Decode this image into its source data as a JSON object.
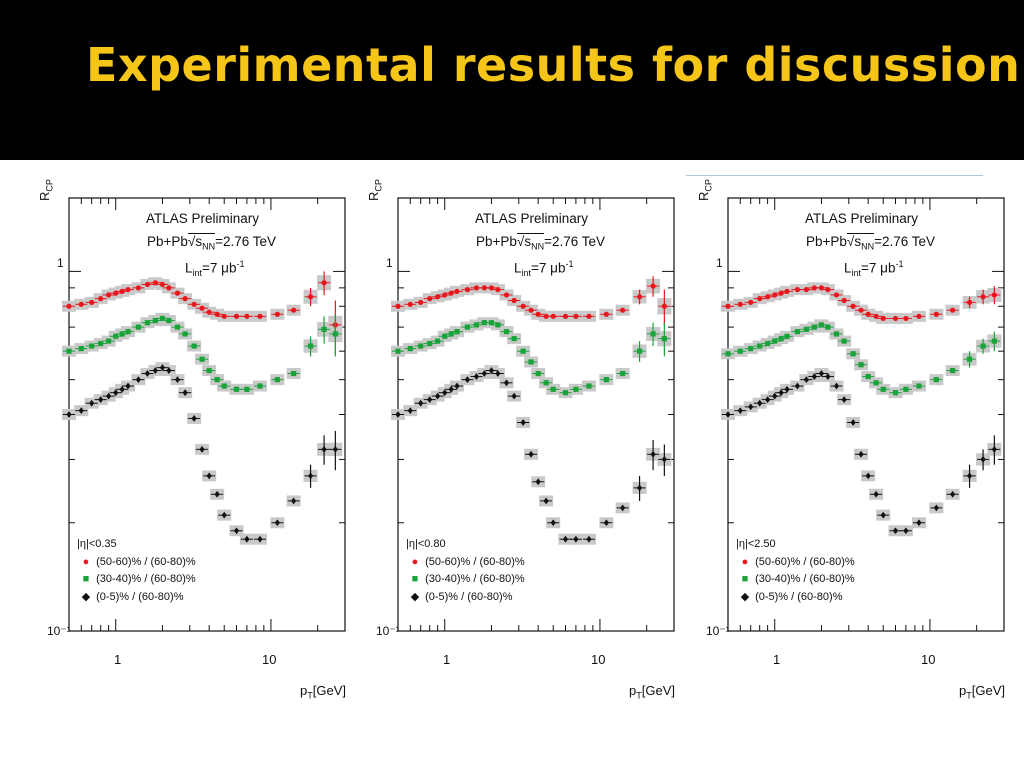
{
  "slide": {
    "title": "Experimental results for discussion"
  },
  "chart_data": [
    {
      "type": "scatter",
      "xscale": "log",
      "yscale": "log",
      "xlim": [
        0.5,
        30
      ],
      "ylim": [
        0.1,
        1.6
      ],
      "y_ticks": [
        "1",
        "10⁻¹"
      ],
      "x_ticks": [
        "1",
        "10"
      ],
      "ylabel": "R_CP",
      "xlabel": "p_T[GeV]",
      "annotations": [
        "ATLAS Preliminary",
        "Pb+Pb √s_NN=2.76 TeV",
        "L_int=7 μb⁻¹",
        "|η|<0.35"
      ],
      "series": [
        {
          "name": "(50-60)% / (60-80)%",
          "color": "#e8161d",
          "marker": "circle",
          "x": [
            0.5,
            0.6,
            0.7,
            0.8,
            0.9,
            1.0,
            1.1,
            1.2,
            1.4,
            1.6,
            1.8,
            2.0,
            2.2,
            2.5,
            2.8,
            3.2,
            3.6,
            4.0,
            4.5,
            5.0,
            6.0,
            7.0,
            8.5,
            11.0,
            14.0,
            18.0,
            22.0,
            26.0
          ],
          "y": [
            0.8,
            0.81,
            0.82,
            0.84,
            0.86,
            0.87,
            0.88,
            0.89,
            0.9,
            0.92,
            0.93,
            0.92,
            0.9,
            0.87,
            0.84,
            0.81,
            0.79,
            0.77,
            0.76,
            0.75,
            0.75,
            0.75,
            0.75,
            0.76,
            0.78,
            0.85,
            0.93,
            0.71
          ],
          "yerr_high": [
            0,
            0,
            0,
            0,
            0,
            0,
            0,
            0,
            0,
            0,
            0,
            0,
            0,
            0,
            0,
            0,
            0,
            0,
            0,
            0,
            0,
            0,
            0,
            0,
            0,
            0.05,
            0.07,
            0.12
          ]
        },
        {
          "name": "(30-40)% / (60-80)%",
          "color": "#1aa33a",
          "marker": "square",
          "x": [
            0.5,
            0.6,
            0.7,
            0.8,
            0.9,
            1.0,
            1.1,
            1.2,
            1.4,
            1.6,
            1.8,
            2.0,
            2.2,
            2.5,
            2.8,
            3.2,
            3.6,
            4.0,
            4.5,
            5.0,
            6.0,
            7.0,
            8.5,
            11.0,
            14.0,
            18.0,
            22.0,
            26.0
          ],
          "y": [
            0.6,
            0.61,
            0.62,
            0.63,
            0.64,
            0.66,
            0.67,
            0.68,
            0.7,
            0.72,
            0.73,
            0.74,
            0.73,
            0.7,
            0.67,
            0.62,
            0.57,
            0.53,
            0.5,
            0.48,
            0.47,
            0.47,
            0.48,
            0.5,
            0.52,
            0.62,
            0.69,
            0.67
          ],
          "yerr_high": [
            0,
            0,
            0,
            0,
            0,
            0,
            0,
            0,
            0,
            0,
            0,
            0,
            0,
            0,
            0,
            0,
            0,
            0,
            0,
            0,
            0,
            0,
            0,
            0,
            0,
            0.04,
            0.06,
            0.09
          ]
        },
        {
          "name": "(0-5)% / (60-80)%",
          "color": "#111111",
          "marker": "diamond",
          "x": [
            0.5,
            0.6,
            0.7,
            0.8,
            0.9,
            1.0,
            1.1,
            1.2,
            1.4,
            1.6,
            1.8,
            2.0,
            2.2,
            2.5,
            2.8,
            3.2,
            3.6,
            4.0,
            4.5,
            5.0,
            6.0,
            7.0,
            8.5,
            11.0,
            14.0,
            18.0,
            22.0,
            26.0
          ],
          "y": [
            0.4,
            0.41,
            0.43,
            0.44,
            0.45,
            0.46,
            0.47,
            0.48,
            0.5,
            0.52,
            0.53,
            0.54,
            0.53,
            0.5,
            0.46,
            0.39,
            0.32,
            0.27,
            0.24,
            0.21,
            0.19,
            0.18,
            0.18,
            0.2,
            0.23,
            0.27,
            0.32,
            0.32
          ],
          "yerr_high": [
            0,
            0,
            0,
            0,
            0,
            0,
            0,
            0,
            0,
            0,
            0,
            0,
            0,
            0,
            0,
            0,
            0,
            0,
            0,
            0,
            0,
            0,
            0,
            0,
            0,
            0.02,
            0.03,
            0.04
          ]
        }
      ]
    },
    {
      "type": "scatter",
      "xscale": "log",
      "yscale": "log",
      "xlim": [
        0.5,
        30
      ],
      "ylim": [
        0.1,
        1.6
      ],
      "y_ticks": [
        "1",
        "10⁻¹"
      ],
      "x_ticks": [
        "1",
        "10"
      ],
      "ylabel": "R_CP",
      "xlabel": "p_T[GeV]",
      "annotations": [
        "ATLAS Preliminary",
        "Pb+Pb √s_NN=2.76 TeV",
        "L_int=7 μb⁻¹",
        "|η|<0.80"
      ],
      "series": [
        {
          "name": "(50-60)% / (60-80)%",
          "color": "#e8161d",
          "marker": "circle",
          "x": [
            0.5,
            0.6,
            0.7,
            0.8,
            0.9,
            1.0,
            1.1,
            1.2,
            1.4,
            1.6,
            1.8,
            2.0,
            2.2,
            2.5,
            2.8,
            3.2,
            3.6,
            4.0,
            4.5,
            5.0,
            6.0,
            7.0,
            8.5,
            11.0,
            14.0,
            18.0,
            22.0,
            26.0
          ],
          "y": [
            0.8,
            0.81,
            0.82,
            0.84,
            0.85,
            0.86,
            0.87,
            0.88,
            0.89,
            0.9,
            0.9,
            0.9,
            0.89,
            0.86,
            0.83,
            0.8,
            0.78,
            0.76,
            0.75,
            0.75,
            0.75,
            0.75,
            0.75,
            0.76,
            0.78,
            0.85,
            0.91,
            0.8
          ],
          "yerr_high": [
            0,
            0,
            0,
            0,
            0,
            0,
            0,
            0,
            0,
            0,
            0,
            0,
            0,
            0,
            0,
            0,
            0,
            0,
            0,
            0,
            0,
            0,
            0,
            0,
            0,
            0.04,
            0.06,
            0.09
          ]
        },
        {
          "name": "(30-40)% / (60-80)%",
          "color": "#1aa33a",
          "marker": "square",
          "x": [
            0.5,
            0.6,
            0.7,
            0.8,
            0.9,
            1.0,
            1.1,
            1.2,
            1.4,
            1.6,
            1.8,
            2.0,
            2.2,
            2.5,
            2.8,
            3.2,
            3.6,
            4.0,
            4.5,
            5.0,
            6.0,
            7.0,
            8.5,
            11.0,
            14.0,
            18.0,
            22.0,
            26.0
          ],
          "y": [
            0.6,
            0.61,
            0.62,
            0.63,
            0.64,
            0.66,
            0.67,
            0.68,
            0.7,
            0.71,
            0.72,
            0.72,
            0.71,
            0.68,
            0.65,
            0.6,
            0.56,
            0.52,
            0.49,
            0.47,
            0.46,
            0.47,
            0.48,
            0.5,
            0.52,
            0.6,
            0.67,
            0.65
          ],
          "yerr_high": [
            0,
            0,
            0,
            0,
            0,
            0,
            0,
            0,
            0,
            0,
            0,
            0,
            0,
            0,
            0,
            0,
            0,
            0,
            0,
            0,
            0,
            0,
            0,
            0,
            0,
            0.04,
            0.05,
            0.07
          ]
        },
        {
          "name": "(0-5)% / (60-80)%",
          "color": "#111111",
          "marker": "diamond",
          "x": [
            0.5,
            0.6,
            0.7,
            0.8,
            0.9,
            1.0,
            1.1,
            1.2,
            1.4,
            1.6,
            1.8,
            2.0,
            2.2,
            2.5,
            2.8,
            3.2,
            3.6,
            4.0,
            4.5,
            5.0,
            6.0,
            7.0,
            8.5,
            11.0,
            14.0,
            18.0,
            22.0,
            26.0
          ],
          "y": [
            0.4,
            0.41,
            0.43,
            0.44,
            0.45,
            0.46,
            0.47,
            0.48,
            0.5,
            0.51,
            0.52,
            0.53,
            0.52,
            0.49,
            0.45,
            0.38,
            0.31,
            0.26,
            0.23,
            0.2,
            0.18,
            0.18,
            0.18,
            0.2,
            0.22,
            0.25,
            0.31,
            0.3
          ],
          "yerr_high": [
            0,
            0,
            0,
            0,
            0,
            0,
            0,
            0,
            0,
            0,
            0,
            0,
            0,
            0,
            0,
            0,
            0,
            0,
            0,
            0,
            0,
            0,
            0,
            0,
            0,
            0.02,
            0.03,
            0.03
          ]
        }
      ]
    },
    {
      "type": "scatter",
      "xscale": "log",
      "yscale": "log",
      "xlim": [
        0.5,
        30
      ],
      "ylim": [
        0.1,
        1.6
      ],
      "y_ticks": [
        "1",
        "10⁻¹"
      ],
      "x_ticks": [
        "1",
        "10"
      ],
      "ylabel": "R_CP",
      "xlabel": "p_T[GeV]",
      "annotations": [
        "ATLAS Preliminary",
        "Pb+Pb √s_NN=2.76 TeV",
        "L_int=7 μb⁻¹",
        "|η|<2.50"
      ],
      "series": [
        {
          "name": "(50-60)% / (60-80)%",
          "color": "#e8161d",
          "marker": "circle",
          "x": [
            0.5,
            0.6,
            0.7,
            0.8,
            0.9,
            1.0,
            1.1,
            1.2,
            1.4,
            1.6,
            1.8,
            2.0,
            2.2,
            2.5,
            2.8,
            3.2,
            3.6,
            4.0,
            4.5,
            5.0,
            6.0,
            7.0,
            8.5,
            11.0,
            14.0,
            18.0,
            22.0,
            26.0
          ],
          "y": [
            0.8,
            0.81,
            0.82,
            0.84,
            0.85,
            0.86,
            0.87,
            0.88,
            0.89,
            0.89,
            0.9,
            0.9,
            0.89,
            0.86,
            0.83,
            0.8,
            0.78,
            0.76,
            0.75,
            0.74,
            0.74,
            0.74,
            0.75,
            0.76,
            0.78,
            0.82,
            0.85,
            0.86
          ],
          "yerr_high": [
            0,
            0,
            0,
            0,
            0,
            0,
            0,
            0,
            0,
            0,
            0,
            0,
            0,
            0,
            0,
            0,
            0,
            0,
            0,
            0,
            0,
            0,
            0,
            0,
            0,
            0.03,
            0.04,
            0.05
          ]
        },
        {
          "name": "(30-40)% / (60-80)%",
          "color": "#1aa33a",
          "marker": "square",
          "x": [
            0.5,
            0.6,
            0.7,
            0.8,
            0.9,
            1.0,
            1.1,
            1.2,
            1.4,
            1.6,
            1.8,
            2.0,
            2.2,
            2.5,
            2.8,
            3.2,
            3.6,
            4.0,
            4.5,
            5.0,
            6.0,
            7.0,
            8.5,
            11.0,
            14.0,
            18.0,
            22.0,
            26.0
          ],
          "y": [
            0.59,
            0.6,
            0.61,
            0.62,
            0.63,
            0.64,
            0.65,
            0.66,
            0.68,
            0.69,
            0.7,
            0.71,
            0.7,
            0.67,
            0.64,
            0.59,
            0.55,
            0.51,
            0.49,
            0.47,
            0.46,
            0.47,
            0.48,
            0.5,
            0.53,
            0.57,
            0.62,
            0.64
          ],
          "yerr_high": [
            0,
            0,
            0,
            0,
            0,
            0,
            0,
            0,
            0,
            0,
            0,
            0,
            0,
            0,
            0,
            0,
            0,
            0,
            0,
            0,
            0,
            0,
            0,
            0,
            0,
            0.03,
            0.03,
            0.04
          ]
        },
        {
          "name": "(0-5)% / (60-80)%",
          "color": "#111111",
          "marker": "diamond",
          "x": [
            0.5,
            0.6,
            0.7,
            0.8,
            0.9,
            1.0,
            1.1,
            1.2,
            1.4,
            1.6,
            1.8,
            2.0,
            2.2,
            2.5,
            2.8,
            3.2,
            3.6,
            4.0,
            4.5,
            5.0,
            6.0,
            7.0,
            8.5,
            11.0,
            14.0,
            18.0,
            22.0,
            26.0
          ],
          "y": [
            0.4,
            0.41,
            0.42,
            0.43,
            0.44,
            0.45,
            0.46,
            0.47,
            0.48,
            0.5,
            0.51,
            0.52,
            0.51,
            0.48,
            0.44,
            0.38,
            0.31,
            0.27,
            0.24,
            0.21,
            0.19,
            0.19,
            0.2,
            0.22,
            0.24,
            0.27,
            0.3,
            0.32
          ],
          "yerr_high": [
            0,
            0,
            0,
            0,
            0,
            0,
            0,
            0,
            0,
            0,
            0,
            0,
            0,
            0,
            0,
            0,
            0,
            0,
            0,
            0,
            0,
            0,
            0,
            0,
            0,
            0.02,
            0.02,
            0.03
          ]
        }
      ]
    }
  ]
}
